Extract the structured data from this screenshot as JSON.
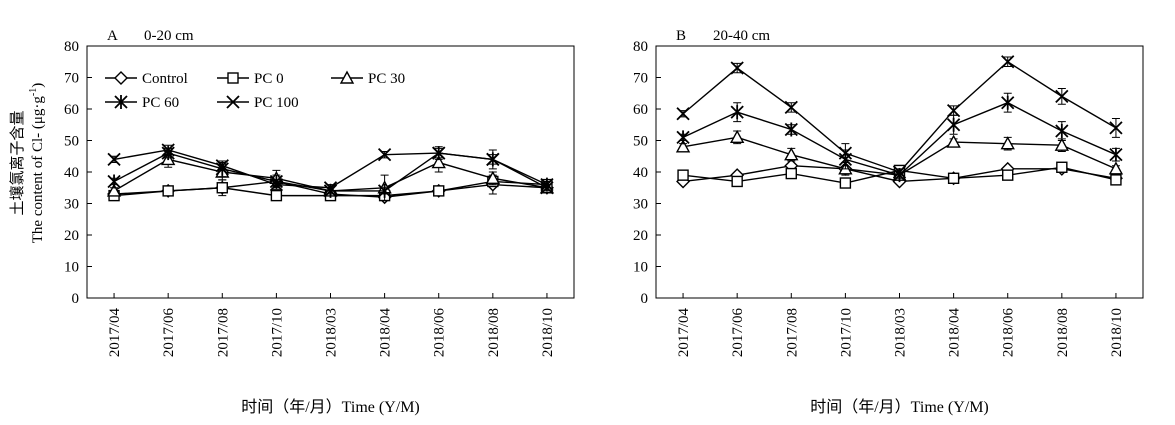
{
  "y_label_cn": "土壤氯离子含量",
  "y_label_en_main": "The content of Cl- (μg·g",
  "y_label_en_sup": "-1",
  "y_label_en_close": ")",
  "chart_data": [
    {
      "type": "line",
      "panel_letter": "A",
      "title": "0-20 cm",
      "xlabel": "时间（年/月）Time (Y/M)",
      "ylabel": "土壤氯离子含量 The content of Cl- (μg·g-1)",
      "categories": [
        "2017/04",
        "2017/06",
        "2017/08",
        "2017/10",
        "2018/03",
        "2018/04",
        "2018/06",
        "2018/08",
        "2018/10"
      ],
      "ylim": [
        0,
        80
      ],
      "yticks": [
        0,
        10,
        20,
        30,
        40,
        50,
        60,
        70,
        80
      ],
      "legend_position": "top-left",
      "series": [
        {
          "name": "Control",
          "marker": "diamond",
          "values": [
            33,
            34,
            35,
            37,
            33,
            32,
            34,
            36,
            35
          ],
          "errors": [
            0.5,
            1.5,
            2.5,
            1.5,
            1,
            1,
            1,
            3,
            1.5
          ]
        },
        {
          "name": "PC 0",
          "marker": "square",
          "values": [
            32.5,
            34,
            35,
            32.5,
            32.5,
            32.5,
            34,
            37,
            36
          ],
          "errors": [
            0.5,
            1,
            1,
            1,
            1,
            1,
            1,
            1,
            1
          ]
        },
        {
          "name": "PC 30",
          "marker": "triangle",
          "values": [
            34,
            44,
            40,
            38,
            34,
            35,
            43,
            38,
            35
          ],
          "errors": [
            1,
            2.5,
            2.5,
            2.5,
            1,
            4,
            3,
            2,
            1
          ]
        },
        {
          "name": "PC 60",
          "marker": "asterisk",
          "values": [
            37,
            46,
            41,
            37,
            34,
            34,
            46,
            44,
            36
          ],
          "errors": [
            1,
            1.5,
            2.5,
            2,
            1,
            1,
            2,
            3,
            1
          ]
        },
        {
          "name": "PC 100",
          "marker": "x",
          "values": [
            44,
            47,
            42,
            36,
            35,
            45.5,
            46,
            44,
            35
          ],
          "errors": [
            1,
            1.5,
            1,
            1.5,
            1,
            1,
            1.5,
            1.5,
            1
          ]
        }
      ]
    },
    {
      "type": "line",
      "panel_letter": "B",
      "title": "20-40 cm",
      "xlabel": "时间（年/月）Time (Y/M)",
      "categories": [
        "2017/04",
        "2017/06",
        "2017/08",
        "2017/10",
        "2018/03",
        "2018/04",
        "2018/06",
        "2018/08",
        "2018/10"
      ],
      "ylim": [
        0,
        80
      ],
      "yticks": [
        0,
        10,
        20,
        30,
        40,
        50,
        60,
        70,
        80
      ],
      "series": [
        {
          "name": "Control",
          "marker": "diamond",
          "values": [
            37,
            39,
            42,
            41,
            37,
            38,
            41,
            41,
            38
          ],
          "errors": [
            0.5,
            0.5,
            0.5,
            0.5,
            0.5,
            0.5,
            0.5,
            0.5,
            0.5
          ]
        },
        {
          "name": "PC 0",
          "marker": "square",
          "values": [
            39,
            37,
            39.5,
            36.5,
            40.5,
            38,
            39,
            41.5,
            37.5
          ],
          "errors": [
            0.5,
            1,
            1,
            1,
            1,
            1,
            1.5,
            1,
            1
          ]
        },
        {
          "name": "PC 30",
          "marker": "triangle",
          "values": [
            48,
            51,
            45.5,
            41,
            39,
            49.5,
            49,
            48.5,
            41
          ],
          "errors": [
            1,
            2,
            2,
            2,
            1,
            1,
            2,
            2,
            1
          ]
        },
        {
          "name": "PC 60",
          "marker": "asterisk",
          "values": [
            51,
            59,
            53.5,
            44,
            39,
            55,
            62,
            53,
            45.5
          ],
          "errors": [
            1,
            3,
            1.5,
            3,
            1,
            3,
            3,
            3,
            2
          ]
        },
        {
          "name": "PC 100",
          "marker": "x",
          "values": [
            58.5,
            73,
            60.5,
            46,
            40,
            59.5,
            75,
            64,
            54
          ],
          "errors": [
            1,
            1.5,
            1.5,
            3,
            1,
            1.5,
            1.5,
            2.5,
            3
          ]
        }
      ]
    }
  ]
}
